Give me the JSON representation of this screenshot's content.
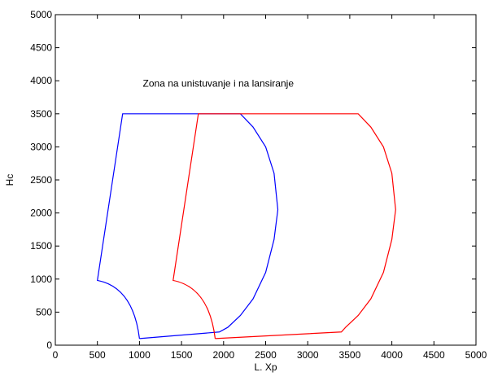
{
  "chart_data": {
    "type": "line",
    "annotation": "Zona na unistuvanje i na lansiranje",
    "xlabel": "L. Xp",
    "ylabel": "Hc",
    "xlim": [
      0,
      5000
    ],
    "ylim": [
      0,
      5000
    ],
    "xticks": [
      0,
      500,
      1000,
      1500,
      2000,
      2500,
      3000,
      3500,
      4000,
      4500,
      5000
    ],
    "yticks": [
      0,
      500,
      1000,
      1500,
      2000,
      2500,
      3000,
      3500,
      4000,
      4500,
      5000
    ],
    "grid": false,
    "legend": "none",
    "series": [
      {
        "color": "#0000ff",
        "x": [
          1000,
          500,
          800,
          2200,
          2350,
          2500,
          2600,
          2645,
          2600,
          2500,
          2350,
          2200,
          2050,
          1950,
          1000
        ],
        "y": [
          100,
          980,
          3500,
          3500,
          3300,
          3000,
          2600,
          2050,
          1600,
          1100,
          700,
          450,
          270,
          200,
          100
        ],
        "rounded_corner": {
          "from": 500,
          "to": 1000,
          "start_y": 980,
          "end_y": 100
        }
      },
      {
        "color": "#ff0000",
        "x": [
          1900,
          1400,
          1700,
          3600,
          3750,
          3900,
          4000,
          4045,
          4000,
          3900,
          3750,
          3600,
          3450,
          3400,
          1900
        ],
        "y": [
          100,
          980,
          3500,
          3500,
          3300,
          3000,
          2600,
          2050,
          1600,
          1100,
          700,
          450,
          270,
          200,
          100
        ],
        "rounded_corner": {
          "from": 1400,
          "to": 1900,
          "start_y": 980,
          "end_y": 100
        }
      }
    ]
  }
}
